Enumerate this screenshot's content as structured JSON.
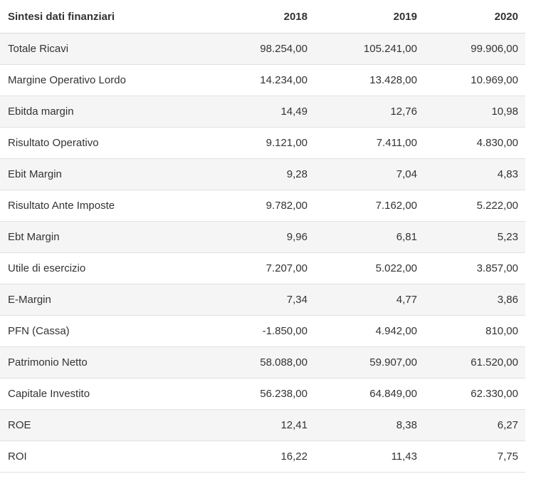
{
  "table": {
    "header": [
      "Sintesi dati finanziari",
      "2018",
      "2019",
      "2020"
    ],
    "rows": [
      {
        "label": "Totale Ricavi",
        "values": [
          "98.254,00",
          "105.241,00",
          "99.906,00"
        ]
      },
      {
        "label": "Margine Operativo Lordo",
        "values": [
          "14.234,00",
          "13.428,00",
          "10.969,00"
        ]
      },
      {
        "label": "Ebitda margin",
        "values": [
          "14,49",
          "12,76",
          "10,98"
        ]
      },
      {
        "label": "Risultato Operativo",
        "values": [
          "9.121,00",
          "7.411,00",
          "4.830,00"
        ]
      },
      {
        "label": "Ebit Margin",
        "values": [
          "9,28",
          "7,04",
          "4,83"
        ]
      },
      {
        "label": "Risultato Ante Imposte",
        "values": [
          "9.782,00",
          "7.162,00",
          "5.222,00"
        ]
      },
      {
        "label": "Ebt Margin",
        "values": [
          "9,96",
          "6,81",
          "5,23"
        ]
      },
      {
        "label": "Utile di esercizio",
        "values": [
          "7.207,00",
          "5.022,00",
          "3.857,00"
        ]
      },
      {
        "label": "E-Margin",
        "values": [
          "7,34",
          "4,77",
          "3,86"
        ]
      },
      {
        "label": "PFN (Cassa)",
        "values": [
          "-1.850,00",
          "4.942,00",
          "810,00"
        ]
      },
      {
        "label": "Patrimonio Netto",
        "values": [
          "58.088,00",
          "59.907,00",
          "61.520,00"
        ]
      },
      {
        "label": "Capitale Investito",
        "values": [
          "56.238,00",
          "64.849,00",
          "62.330,00"
        ]
      },
      {
        "label": "ROE",
        "values": [
          "12,41",
          "8,38",
          "6,27"
        ]
      },
      {
        "label": "ROI",
        "values": [
          "16,22",
          "11,43",
          "7,75"
        ]
      }
    ]
  }
}
